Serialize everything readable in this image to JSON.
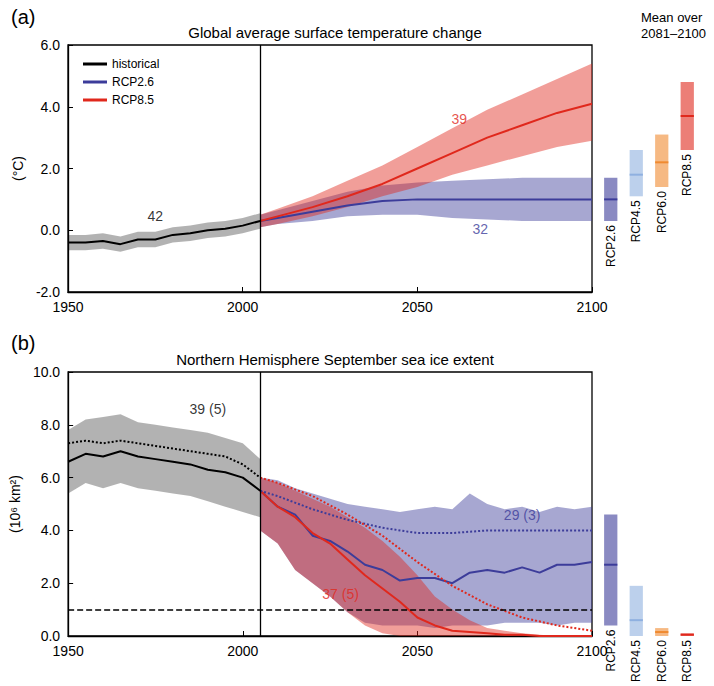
{
  "chart_data": [
    {
      "type": "line",
      "panel": "(a)",
      "title": "Global average surface temperature change",
      "y_label": "(°C)",
      "xlim": [
        1950,
        2100
      ],
      "xticks": [
        1950,
        2000,
        2050,
        2100
      ],
      "ylim": [
        -2,
        6
      ],
      "yticks": [
        {
          "value": -2,
          "label": "-2.0"
        },
        {
          "value": 0,
          "label": "0.0"
        },
        {
          "value": 2,
          "label": "2.0"
        },
        {
          "value": 4,
          "label": "4.0"
        },
        {
          "value": 6,
          "label": "6.0"
        }
      ],
      "grid": false,
      "legend": "upper left",
      "divider": 2005,
      "series": [
        {
          "name": "historical",
          "color": "#000000",
          "x": [
            1950,
            1955,
            1960,
            1965,
            1970,
            1975,
            1980,
            1985,
            1990,
            1995,
            2000,
            2005
          ],
          "values": [
            -0.4,
            -0.4,
            -0.35,
            -0.45,
            -0.3,
            -0.3,
            -0.15,
            -0.1,
            0.0,
            0.05,
            0.15,
            0.3
          ],
          "lower": [
            -0.65,
            -0.65,
            -0.6,
            -0.7,
            -0.55,
            -0.55,
            -0.4,
            -0.35,
            -0.25,
            -0.2,
            -0.1,
            0.05
          ],
          "upper": [
            -0.15,
            -0.15,
            -0.1,
            -0.2,
            -0.05,
            -0.05,
            0.1,
            0.15,
            0.25,
            0.3,
            0.4,
            0.55
          ]
        },
        {
          "name": "RCP2.6",
          "color": "#3c3c9a",
          "x": [
            2005,
            2010,
            2020,
            2030,
            2040,
            2050,
            2060,
            2070,
            2080,
            2090,
            2100
          ],
          "values": [
            0.3,
            0.4,
            0.6,
            0.8,
            0.95,
            1.0,
            1.0,
            1.0,
            1.0,
            1.0,
            1.0
          ],
          "lower": [
            0.1,
            0.2,
            0.3,
            0.45,
            0.5,
            0.5,
            0.4,
            0.35,
            0.3,
            0.3,
            0.3
          ],
          "upper": [
            0.5,
            0.65,
            0.95,
            1.25,
            1.45,
            1.55,
            1.6,
            1.65,
            1.7,
            1.7,
            1.7
          ]
        },
        {
          "name": "RCP8.5",
          "color": "#e0281c",
          "x": [
            2005,
            2010,
            2020,
            2030,
            2040,
            2050,
            2060,
            2070,
            2080,
            2090,
            2100
          ],
          "values": [
            0.3,
            0.45,
            0.75,
            1.1,
            1.5,
            2.0,
            2.5,
            3.0,
            3.4,
            3.8,
            4.1
          ],
          "lower": [
            0.1,
            0.2,
            0.45,
            0.75,
            1.1,
            1.4,
            1.8,
            2.1,
            2.4,
            2.7,
            2.9
          ],
          "upper": [
            0.5,
            0.7,
            1.1,
            1.6,
            2.1,
            2.7,
            3.3,
            3.9,
            4.4,
            4.9,
            5.4
          ]
        }
      ],
      "annotations": [
        {
          "text": "42",
          "x": 1975,
          "y": 0.45,
          "color": "#000000"
        },
        {
          "text": "39",
          "x": 2062,
          "y": 3.6,
          "color": "#e0281c"
        },
        {
          "text": "32",
          "x": 2068,
          "y": 0.05,
          "color": "#3c3c9a"
        }
      ],
      "side_bars": {
        "title": [
          "Mean over",
          "2081–2100"
        ],
        "categories": [
          "RCP2.6",
          "RCP4.5",
          "RCP6.0",
          "RCP8.5"
        ],
        "low": [
          0.3,
          1.1,
          1.4,
          2.6
        ],
        "high": [
          1.7,
          2.6,
          3.1,
          4.8
        ],
        "mean": [
          1.0,
          1.8,
          2.2,
          3.7
        ],
        "colors": [
          "#3c3c9a",
          "#8fb0e0",
          "#f08a30",
          "#e0281c"
        ]
      }
    },
    {
      "type": "line",
      "panel": "(b)",
      "title": "Northern Hemisphere September sea ice extent",
      "y_label": "(10⁶ km²)",
      "xlim": [
        1950,
        2100
      ],
      "xticks": [
        1950,
        2000,
        2050,
        2100
      ],
      "ylim": [
        0,
        10
      ],
      "yticks": [
        {
          "value": 0,
          "label": "0.0"
        },
        {
          "value": 2,
          "label": "2.0"
        },
        {
          "value": 4,
          "label": "4.0"
        },
        {
          "value": 6,
          "label": "6.0"
        },
        {
          "value": 8,
          "label": "8.0"
        },
        {
          "value": 10,
          "label": "10.0"
        }
      ],
      "grid": false,
      "divider": 2005,
      "threshold": 1.0,
      "series": [
        {
          "color": "#000000",
          "x": [
            1950,
            1955,
            1960,
            1965,
            1970,
            1975,
            1980,
            1985,
            1990,
            1995,
            2000,
            2005
          ],
          "values": [
            6.6,
            6.9,
            6.8,
            7.0,
            6.8,
            6.7,
            6.6,
            6.5,
            6.3,
            6.2,
            6.0,
            5.5
          ],
          "lower": [
            5.4,
            5.8,
            5.6,
            5.8,
            5.6,
            5.5,
            5.4,
            5.3,
            5.1,
            4.9,
            4.7,
            4.5
          ],
          "upper": [
            7.8,
            8.2,
            8.3,
            8.4,
            8.1,
            8.0,
            7.9,
            7.8,
            7.7,
            7.5,
            7.3,
            6.7
          ]
        },
        {
          "color": "#000000",
          "line_style": "dotted",
          "x": [
            1950,
            1955,
            1960,
            1965,
            1970,
            1975,
            1980,
            1985,
            1990,
            1995,
            2000,
            2005
          ],
          "values": [
            7.3,
            7.4,
            7.3,
            7.4,
            7.3,
            7.2,
            7.1,
            7.0,
            6.9,
            6.8,
            6.5,
            6.0
          ]
        },
        {
          "color": "#3c3c9a",
          "x": [
            2005,
            2010,
            2015,
            2020,
            2025,
            2030,
            2035,
            2040,
            2045,
            2050,
            2055,
            2060,
            2065,
            2070,
            2075,
            2080,
            2085,
            2090,
            2095,
            2100
          ],
          "values": [
            5.5,
            4.9,
            4.6,
            3.8,
            3.6,
            3.2,
            2.7,
            2.5,
            2.1,
            2.2,
            2.2,
            2.0,
            2.4,
            2.5,
            2.4,
            2.6,
            2.4,
            2.7,
            2.7,
            2.8
          ],
          "lower": [
            4.0,
            3.5,
            2.5,
            2.0,
            1.5,
            0.9,
            0.5,
            0.4,
            0.4,
            0.4,
            0.3,
            0.4,
            0.4,
            0.4,
            0.5,
            0.5,
            0.5,
            0.4,
            0.5,
            0.5
          ],
          "upper": [
            6.0,
            5.9,
            5.6,
            5.4,
            5.2,
            5.0,
            4.9,
            4.8,
            4.7,
            4.8,
            4.9,
            4.8,
            5.4,
            5.0,
            4.8,
            4.9,
            4.7,
            4.9,
            4.8,
            4.9
          ]
        },
        {
          "color": "#e0281c",
          "x": [
            2005,
            2010,
            2015,
            2020,
            2025,
            2030,
            2035,
            2040,
            2045,
            2050,
            2055,
            2060,
            2065,
            2070,
            2075,
            2080,
            2085,
            2090,
            2095,
            2100
          ],
          "values": [
            5.5,
            4.9,
            4.5,
            3.9,
            3.5,
            2.9,
            2.3,
            1.8,
            1.3,
            0.7,
            0.4,
            0.2,
            0.15,
            0.1,
            0.05,
            0.05,
            0.0,
            0.0,
            0.0,
            0.0
          ],
          "lower": [
            4.0,
            3.5,
            2.5,
            2.0,
            1.5,
            0.9,
            0.4,
            0.1,
            0,
            0,
            0,
            0,
            0,
            0,
            0,
            0,
            0,
            0,
            0,
            0
          ],
          "upper": [
            6.0,
            5.8,
            5.5,
            5.2,
            4.9,
            4.5,
            4.1,
            3.6,
            3.0,
            2.3,
            1.5,
            1.0,
            0.6,
            0.3,
            0.2,
            0.1,
            0.05,
            0,
            0,
            0
          ]
        },
        {
          "color": "#3c3c9a",
          "line_style": "dotted",
          "x": [
            2005,
            2010,
            2020,
            2030,
            2040,
            2050,
            2060,
            2070,
            2080,
            2090,
            2100
          ],
          "values": [
            5.5,
            5.3,
            4.8,
            4.4,
            4.1,
            3.9,
            3.9,
            4.0,
            4.0,
            4.0,
            4.0
          ]
        },
        {
          "color": "#e0281c",
          "line_style": "dotted",
          "x": [
            2005,
            2010,
            2020,
            2030,
            2040,
            2050,
            2060,
            2070,
            2080,
            2090,
            2100
          ],
          "values": [
            6.0,
            5.8,
            5.3,
            4.6,
            3.8,
            2.8,
            1.9,
            1.2,
            0.7,
            0.4,
            0.2
          ]
        }
      ],
      "annotations": [
        {
          "text": "39 (5)",
          "x": 1990,
          "y": 8.6,
          "color": "#000000"
        },
        {
          "text": "29 (3)",
          "x": 2080,
          "y": 4.6,
          "color": "#3c3c9a"
        },
        {
          "text": "37 (5)",
          "x": 2028,
          "y": 1.6,
          "color": "#e0281c"
        }
      ],
      "side_bars": {
        "categories": [
          "RCP2.6",
          "RCP4.5",
          "RCP6.0",
          "RCP8.5"
        ],
        "low": [
          0.4,
          0.0,
          0.0,
          0.0
        ],
        "high": [
          4.6,
          1.9,
          0.3,
          0.1
        ],
        "mean": [
          2.7,
          0.6,
          0.15,
          0.05
        ],
        "colors": [
          "#3c3c9a",
          "#8fb0e0",
          "#f08a30",
          "#e0281c"
        ]
      }
    }
  ]
}
